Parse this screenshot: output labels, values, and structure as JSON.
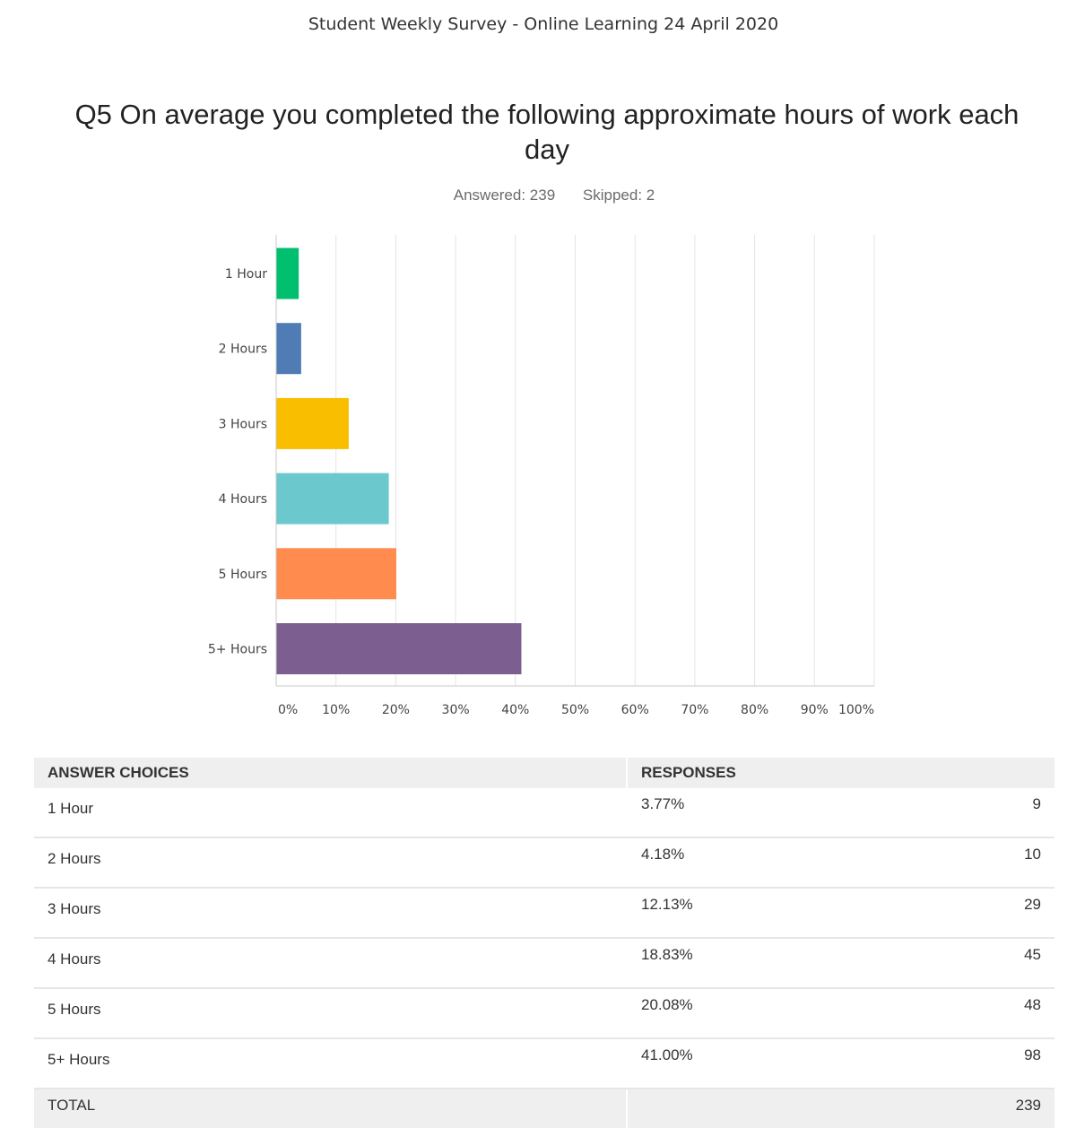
{
  "header": {
    "survey_title": "Student Weekly Survey - Online Learning 24 April 2020",
    "question": "Q5 On average you completed the following approximate hours of work each day",
    "answered": "Answered: 239",
    "skipped": "Skipped: 2"
  },
  "chart_data": {
    "type": "bar",
    "orientation": "horizontal",
    "categories": [
      "1 Hour",
      "2 Hours",
      "3 Hours",
      "4 Hours",
      "5 Hours",
      "5+ Hours"
    ],
    "values": [
      3.77,
      4.18,
      12.13,
      18.83,
      20.08,
      41.0
    ],
    "colors": [
      "#00bf6f",
      "#507cb6",
      "#f9be00",
      "#6bc8cd",
      "#ff8b4f",
      "#7d5e90"
    ],
    "xlim": [
      0,
      100
    ],
    "xticks": [
      "0%",
      "10%",
      "20%",
      "30%",
      "40%",
      "50%",
      "60%",
      "70%",
      "80%",
      "90%",
      "100%"
    ],
    "grid": true
  },
  "table": {
    "headers": [
      "ANSWER CHOICES",
      "RESPONSES"
    ],
    "rows": [
      {
        "choice": "1 Hour",
        "percent": "3.77%",
        "count": "9"
      },
      {
        "choice": "2 Hours",
        "percent": "4.18%",
        "count": "10"
      },
      {
        "choice": "3 Hours",
        "percent": "12.13%",
        "count": "29"
      },
      {
        "choice": "4 Hours",
        "percent": "18.83%",
        "count": "45"
      },
      {
        "choice": "5 Hours",
        "percent": "20.08%",
        "count": "48"
      },
      {
        "choice": "5+ Hours",
        "percent": "41.00%",
        "count": "98"
      }
    ],
    "total_label": "TOTAL",
    "total_count": "239"
  }
}
